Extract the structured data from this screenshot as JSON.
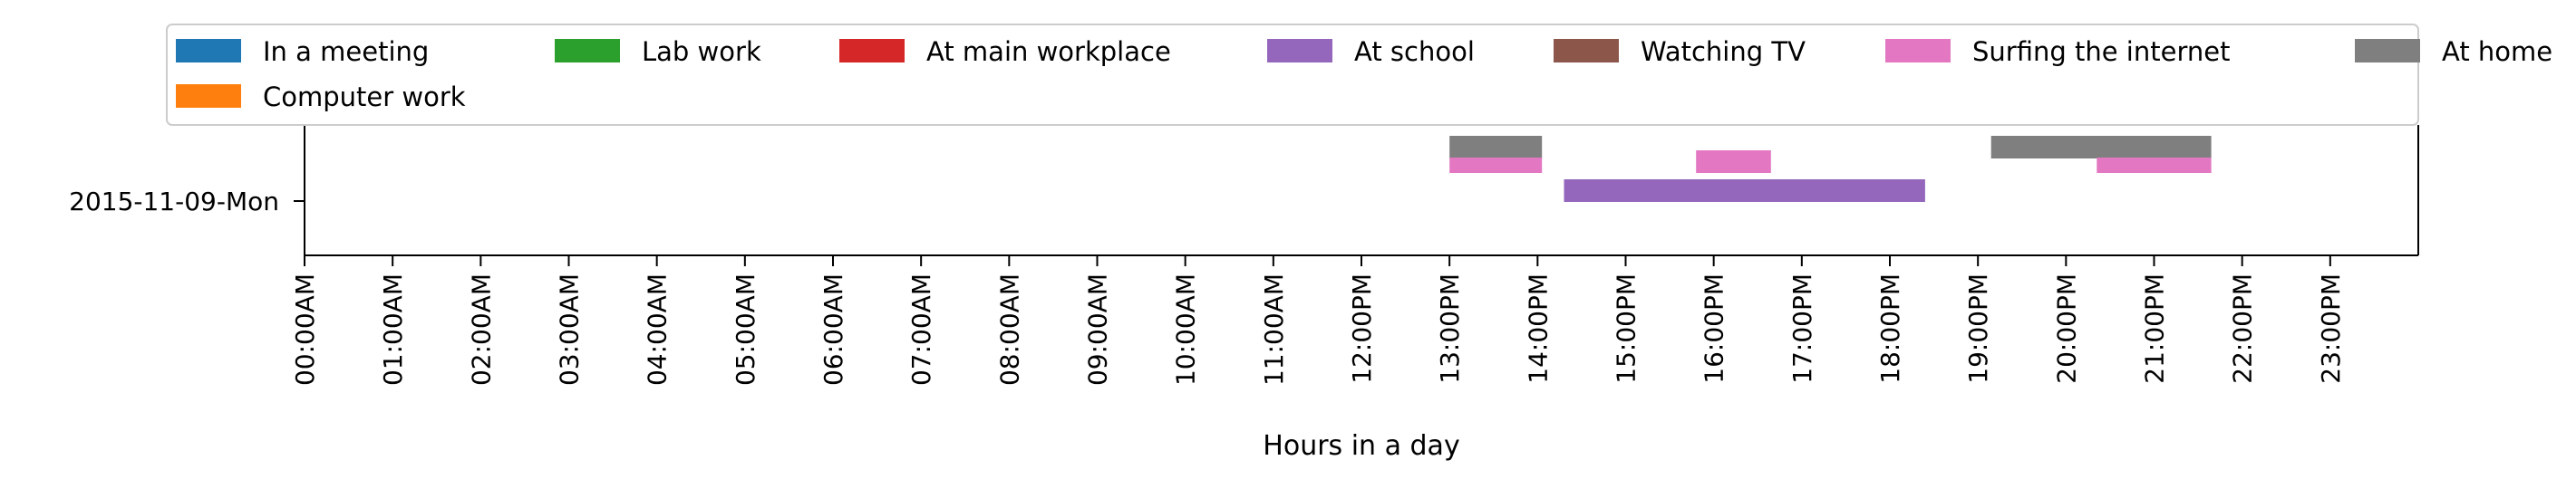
{
  "chart_data": {
    "type": "timeline",
    "xlabel": "Hours in a day",
    "ylabel": "",
    "title": "",
    "xlim": [
      0,
      24
    ],
    "rows": [
      "2015-11-09-Mon"
    ],
    "x_ticks": [
      {
        "value": 0,
        "label": "00:00AM"
      },
      {
        "value": 1,
        "label": "01:00AM"
      },
      {
        "value": 2,
        "label": "02:00AM"
      },
      {
        "value": 3,
        "label": "03:00AM"
      },
      {
        "value": 4,
        "label": "04:00AM"
      },
      {
        "value": 5,
        "label": "05:00AM"
      },
      {
        "value": 6,
        "label": "06:00AM"
      },
      {
        "value": 7,
        "label": "07:00AM"
      },
      {
        "value": 8,
        "label": "08:00AM"
      },
      {
        "value": 9,
        "label": "09:00AM"
      },
      {
        "value": 10,
        "label": "10:00AM"
      },
      {
        "value": 11,
        "label": "11:00AM"
      },
      {
        "value": 12,
        "label": "12:00PM"
      },
      {
        "value": 13,
        "label": "13:00PM"
      },
      {
        "value": 14,
        "label": "14:00PM"
      },
      {
        "value": 15,
        "label": "15:00PM"
      },
      {
        "value": 16,
        "label": "16:00PM"
      },
      {
        "value": 17,
        "label": "17:00PM"
      },
      {
        "value": 18,
        "label": "18:00PM"
      },
      {
        "value": 19,
        "label": "19:00PM"
      },
      {
        "value": 20,
        "label": "20:00PM"
      },
      {
        "value": 21,
        "label": "21:00PM"
      },
      {
        "value": 22,
        "label": "22:00PM"
      },
      {
        "value": 23,
        "label": "23:00PM"
      }
    ],
    "legend": {
      "placement": "top",
      "entries": [
        {
          "name": "In a meeting",
          "color": "#1f77b4"
        },
        {
          "name": "Lab work",
          "color": "#2ca02c"
        },
        {
          "name": "At main workplace",
          "color": "#d62728"
        },
        {
          "name": "At school",
          "color": "#9467bd"
        },
        {
          "name": "Watching TV",
          "color": "#8c564b"
        },
        {
          "name": "Surfing the internet",
          "color": "#e377c2"
        },
        {
          "name": "At home",
          "color": "#7f7f7f"
        },
        {
          "name": "Computer work",
          "color": "#ff7f0e"
        }
      ]
    },
    "series": [
      {
        "name": "At home",
        "color": "#7f7f7f",
        "row": "2015-11-09-Mon",
        "intervals": [
          [
            13.0,
            14.05
          ],
          [
            19.15,
            21.65
          ]
        ]
      },
      {
        "name": "Surfing the internet",
        "color": "#e377c2",
        "row": "2015-11-09-Mon",
        "intervals": [
          [
            13.0,
            14.05
          ],
          [
            15.8,
            16.65
          ],
          [
            20.35,
            21.65
          ]
        ]
      },
      {
        "name": "At school",
        "color": "#9467bd",
        "row": "2015-11-09-Mon",
        "intervals": [
          [
            14.3,
            18.4
          ]
        ]
      }
    ]
  }
}
